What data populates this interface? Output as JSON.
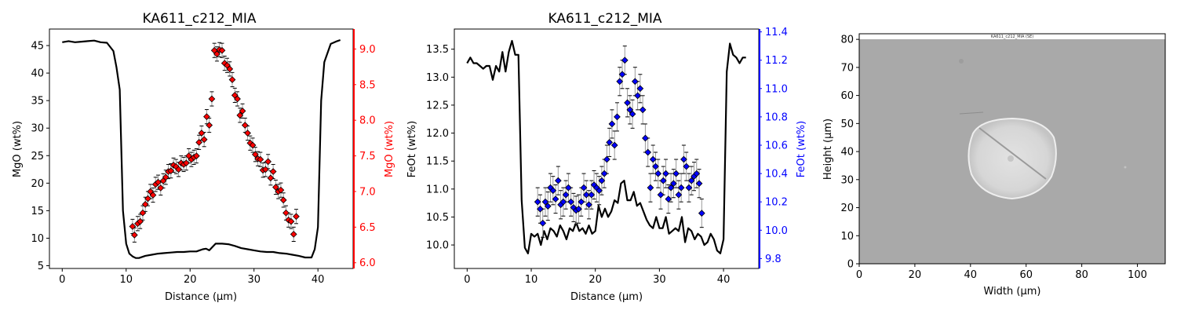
{
  "chart_data": [
    {
      "type": "line",
      "title": "KA611_c212_MIA",
      "xlabel": "Distance (µm)",
      "ylabel": "MgO (wt%)",
      "y2label": "MgO (wt%)",
      "xlim": [
        -2,
        45.5
      ],
      "ylim": [
        4.5,
        48
      ],
      "y2lim": [
        5.92,
        9.28
      ],
      "xticks": [
        0,
        10,
        20,
        30,
        40
      ],
      "yticks": [
        5,
        10,
        15,
        20,
        25,
        30,
        35,
        40,
        45
      ],
      "y2ticks": [
        6.0,
        6.5,
        7.0,
        7.5,
        8.0,
        8.5,
        9.0
      ],
      "secondary_axis_color": "#ff0000",
      "grid": false,
      "series": [
        {
          "name": "",
          "axis": "left",
          "color": "#000000",
          "x": [
            0,
            1,
            2,
            3,
            4,
            5,
            6,
            7,
            8,
            8.5,
            9,
            9.5,
            10,
            10.5,
            11,
            11.5,
            12,
            13,
            14,
            15,
            16,
            17,
            18,
            19,
            20,
            21,
            22,
            22.5,
            23,
            24,
            25,
            26,
            27,
            28,
            29,
            30,
            31,
            32,
            33,
            34,
            35,
            36,
            37,
            38,
            39,
            39.5,
            40,
            40.5,
            41,
            42,
            43,
            43.5
          ],
          "y": [
            45.6,
            45.8,
            45.6,
            45.7,
            45.8,
            45.9,
            45.6,
            45.5,
            44,
            41,
            37,
            15,
            9,
            7.2,
            6.7,
            6.4,
            6.4,
            6.8,
            7,
            7.2,
            7.3,
            7.4,
            7.5,
            7.5,
            7.6,
            7.6,
            8,
            8.1,
            7.8,
            9,
            9,
            8.9,
            8.6,
            8.2,
            8,
            7.8,
            7.6,
            7.5,
            7.5,
            7.3,
            7.2,
            7,
            6.8,
            6.5,
            6.5,
            8,
            12,
            35,
            42,
            45.3,
            45.8,
            46
          ]
        },
        {
          "name": "",
          "axis": "right",
          "color": "#ff0000",
          "marker": "diamond",
          "error": 0.1,
          "x": [
            11,
            11.3,
            11.8,
            12.2,
            12.6,
            13,
            13.4,
            13.8,
            14.2,
            14.6,
            15,
            15.4,
            15.8,
            16.2,
            16.6,
            17,
            17.4,
            17.8,
            18.2,
            18.6,
            19,
            19.4,
            19.8,
            20.2,
            20.6,
            21,
            21.4,
            21.8,
            22.2,
            22.6,
            23,
            23.4,
            23.8,
            24.2,
            24.6,
            25,
            25.4,
            25.8,
            26.2,
            26.6,
            27,
            27.4,
            27.8,
            28.2,
            28.6,
            29,
            29.4,
            29.8,
            30.2,
            30.6,
            31,
            31.4,
            31.8,
            32.2,
            32.6,
            33,
            33.4,
            33.8,
            34.2,
            34.6,
            35,
            35.4,
            35.8,
            36.2,
            36.6
          ],
          "y": [
            6.51,
            6.39,
            6.55,
            6.58,
            6.7,
            6.82,
            6.9,
            7.0,
            6.95,
            7.1,
            7.13,
            7.05,
            7.15,
            7.2,
            7.28,
            7.29,
            7.37,
            7.35,
            7.31,
            7.4,
            7.38,
            7.4,
            7.5,
            7.45,
            7.48,
            7.5,
            7.69,
            7.82,
            7.73,
            8.05,
            7.93,
            8.3,
            8.98,
            8.93,
            8.99,
            8.98,
            8.8,
            8.77,
            8.72,
            8.57,
            8.35,
            8.3,
            8.07,
            8.13,
            7.93,
            7.82,
            7.68,
            7.65,
            7.52,
            7.46,
            7.45,
            7.3,
            7.31,
            7.42,
            7.19,
            7.28,
            7.06,
            7.0,
            7.02,
            6.88,
            6.7,
            6.6,
            6.58,
            6.4,
            6.65
          ]
        }
      ]
    },
    {
      "type": "line",
      "title": "KA611_c212_MIA",
      "xlabel": "Distance (µm)",
      "ylabel": "FeOt (wt%)",
      "y2label": "FeOt (wt%)",
      "xlim": [
        -2,
        45.5
      ],
      "ylim": [
        9.58,
        13.86
      ],
      "y2lim": [
        9.73,
        11.42
      ],
      "xticks": [
        0,
        10,
        20,
        30,
        40
      ],
      "yticks": [
        10.0,
        10.5,
        11.0,
        11.5,
        12.0,
        12.5,
        13.0,
        13.5
      ],
      "y2ticks": [
        9.8,
        10.0,
        10.2,
        10.4,
        10.6,
        10.8,
        11.0,
        11.2,
        11.4
      ],
      "secondary_axis_color": "#0000ff",
      "grid": false,
      "series": [
        {
          "name": "",
          "axis": "left",
          "color": "#000000",
          "x": [
            0,
            0.5,
            1,
            1.5,
            2,
            2.5,
            3,
            3.5,
            4,
            4.5,
            5,
            5.5,
            6,
            6.5,
            7,
            7.5,
            8,
            8.5,
            9,
            9.5,
            10,
            10.5,
            11,
            11.5,
            12,
            12.5,
            13,
            13.5,
            14,
            14.5,
            15,
            15.5,
            16,
            16.5,
            17,
            17.5,
            18,
            18.5,
            19,
            19.5,
            20,
            20.5,
            21,
            21.5,
            22,
            22.5,
            23,
            23.5,
            24,
            24.5,
            25,
            25.5,
            26,
            26.5,
            27,
            27.5,
            28,
            28.5,
            29,
            29.5,
            30,
            30.5,
            31,
            31.5,
            32,
            32.5,
            33,
            33.5,
            34,
            34.5,
            35,
            35.5,
            36,
            36.5,
            37,
            37.5,
            38,
            38.5,
            39,
            39.5,
            40,
            40.5,
            41,
            41.5,
            42,
            42.5,
            43,
            43.5
          ],
          "y": [
            13.25,
            13.35,
            13.25,
            13.25,
            13.2,
            13.15,
            13.2,
            13.2,
            12.95,
            13.2,
            13.1,
            13.45,
            13.1,
            13.45,
            13.65,
            13.4,
            13.4,
            10.8,
            9.95,
            9.85,
            10.2,
            10.15,
            10.2,
            10.0,
            10.25,
            10.1,
            10.3,
            10.25,
            10.15,
            10.35,
            10.25,
            10.1,
            10.3,
            10.25,
            10.4,
            10.25,
            10.3,
            10.2,
            10.35,
            10.2,
            10.25,
            10.7,
            10.5,
            10.65,
            10.5,
            10.6,
            10.8,
            10.75,
            11.1,
            11.15,
            10.8,
            10.8,
            10.95,
            10.7,
            10.75,
            10.6,
            10.45,
            10.35,
            10.3,
            10.5,
            10.3,
            10.3,
            10.5,
            10.2,
            10.25,
            10.3,
            10.25,
            10.5,
            10.05,
            10.3,
            10.25,
            10.1,
            10.2,
            10.15,
            10.0,
            10.05,
            10.2,
            10.1,
            9.9,
            9.85,
            10.1,
            13.1,
            13.6,
            13.4,
            13.35,
            13.25,
            13.35,
            13.35
          ],
          "note": ""
        },
        {
          "name": "",
          "axis": "right",
          "color": "#0000ff",
          "marker": "diamond",
          "error": 0.1,
          "x": [
            11,
            11.4,
            11.8,
            12.2,
            12.6,
            13,
            13.4,
            13.8,
            14.2,
            14.6,
            15,
            15.4,
            15.8,
            16.2,
            16.6,
            17,
            17.4,
            17.8,
            18.2,
            18.6,
            19,
            19.4,
            19.8,
            20.2,
            20.6,
            21,
            21.4,
            21.8,
            22.2,
            22.6,
            23,
            23.4,
            23.8,
            24.2,
            24.6,
            25,
            25.4,
            25.8,
            26.2,
            26.6,
            27,
            27.4,
            27.8,
            28.2,
            28.6,
            29,
            29.4,
            29.8,
            30.2,
            30.6,
            31,
            31.4,
            31.8,
            32.2,
            32.6,
            33,
            33.4,
            33.8,
            34.2,
            34.6,
            35,
            35.4,
            35.8,
            36.2,
            36.6
          ],
          "y": [
            10.2,
            10.15,
            10.05,
            10.2,
            10.17,
            10.3,
            10.28,
            10.22,
            10.35,
            10.18,
            10.2,
            10.25,
            10.3,
            10.2,
            10.16,
            10.14,
            10.15,
            10.2,
            10.3,
            10.25,
            10.18,
            10.25,
            10.32,
            10.3,
            10.28,
            10.35,
            10.4,
            10.5,
            10.62,
            10.75,
            10.6,
            10.8,
            11.05,
            11.1,
            11.2,
            10.9,
            10.85,
            10.82,
            11.05,
            10.95,
            11.0,
            10.85,
            10.65,
            10.55,
            10.3,
            10.5,
            10.45,
            10.4,
            10.25,
            10.35,
            10.4,
            10.22,
            10.3,
            10.33,
            10.4,
            10.25,
            10.3,
            10.5,
            10.45,
            10.3,
            10.35,
            10.38,
            10.4,
            10.33,
            10.12
          ]
        }
      ]
    },
    {
      "type": "image",
      "title": "",
      "xlabel": "Width (µm)",
      "ylabel": "Height (µm)",
      "xlim": [
        0,
        110
      ],
      "ylim": [
        0,
        82
      ],
      "xticks": [
        0,
        20,
        40,
        60,
        80,
        100
      ],
      "yticks": [
        0,
        10,
        20,
        30,
        40,
        50,
        60,
        70,
        80
      ],
      "image_caption": "KA611_c212_MIA (SE)"
    }
  ]
}
